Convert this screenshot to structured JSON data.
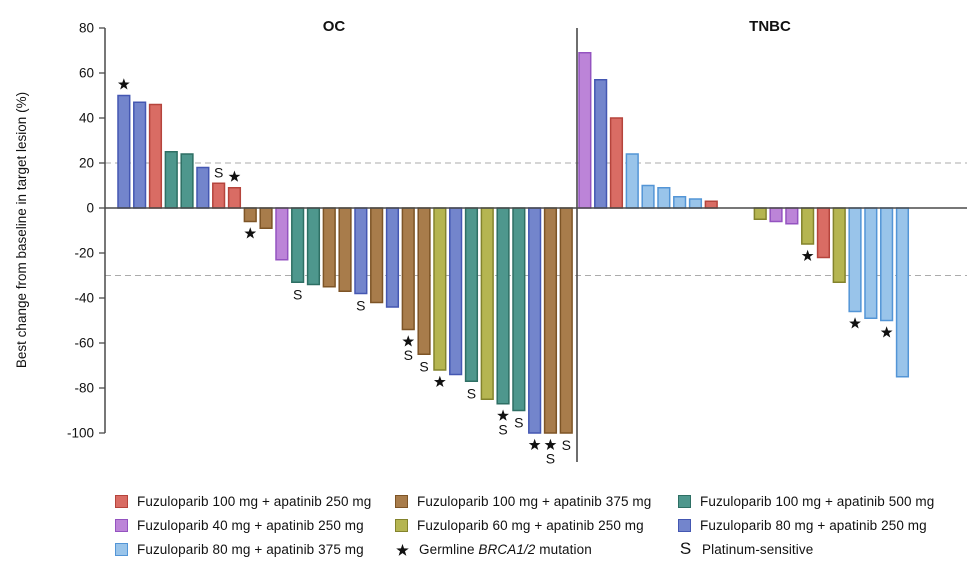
{
  "palette": {
    "red": {
      "fill": "#D96C64",
      "stroke": "#B5443C"
    },
    "brown": {
      "fill": "#A87C4B",
      "stroke": "#7D5426"
    },
    "teal": {
      "fill": "#4E978D",
      "stroke": "#2E6F64"
    },
    "purple": {
      "fill": "#BC84D8",
      "stroke": "#9453C0"
    },
    "yellow": {
      "fill": "#B5B551",
      "stroke": "#83832C"
    },
    "indigo": {
      "fill": "#7385CC",
      "stroke": "#4457B2"
    },
    "skyblue": {
      "fill": "#99C4EA",
      "stroke": "#5395D6"
    }
  },
  "chart_data": {
    "type": "bar",
    "subtype": "waterfall",
    "ylabel": "Best change from baseline in target lesion (%)",
    "ylim": [
      -100,
      80
    ],
    "yticks": [
      80,
      60,
      40,
      20,
      0,
      -20,
      -40,
      -60,
      -80,
      -100
    ],
    "reference_lines": [
      20,
      -30
    ],
    "grid": false,
    "annotation_key": {
      "*": "Germline BRCA1/2 mutation",
      "S": "Platinum-sensitive"
    },
    "panels": [
      {
        "label": "OC",
        "bars": [
          {
            "v": 50,
            "c": "indigo",
            "f": "*"
          },
          {
            "v": 47,
            "c": "indigo",
            "f": ""
          },
          {
            "v": 46,
            "c": "red",
            "f": ""
          },
          {
            "v": 25,
            "c": "teal",
            "f": ""
          },
          {
            "v": 24,
            "c": "teal",
            "f": ""
          },
          {
            "v": 18,
            "c": "indigo",
            "f": ""
          },
          {
            "v": 11,
            "c": "red",
            "f": "S"
          },
          {
            "v": 9,
            "c": "red",
            "f": "*"
          },
          {
            "v": -6,
            "c": "brown",
            "f": "*"
          },
          {
            "v": -9,
            "c": "brown",
            "f": ""
          },
          {
            "v": -23,
            "c": "purple",
            "f": ""
          },
          {
            "v": -33,
            "c": "teal",
            "f": "S"
          },
          {
            "v": -34,
            "c": "teal",
            "f": ""
          },
          {
            "v": -35,
            "c": "brown",
            "f": ""
          },
          {
            "v": -37,
            "c": "brown",
            "f": ""
          },
          {
            "v": -38,
            "c": "indigo",
            "f": "S"
          },
          {
            "v": -42,
            "c": "brown",
            "f": ""
          },
          {
            "v": -44,
            "c": "indigo",
            "f": ""
          },
          {
            "v": -54,
            "c": "brown",
            "f": "*S"
          },
          {
            "v": -65,
            "c": "brown",
            "f": "S"
          },
          {
            "v": -72,
            "c": "yellow",
            "f": "*"
          },
          {
            "v": -74,
            "c": "indigo",
            "f": ""
          },
          {
            "v": -77,
            "c": "teal",
            "f": "S"
          },
          {
            "v": -85,
            "c": "yellow",
            "f": ""
          },
          {
            "v": -87,
            "c": "teal",
            "f": "*S"
          },
          {
            "v": -90,
            "c": "teal",
            "f": "S"
          },
          {
            "v": -100,
            "c": "indigo",
            "f": "*"
          },
          {
            "v": -100,
            "c": "brown",
            "f": "*S"
          },
          {
            "v": -100,
            "c": "brown",
            "f": "S"
          }
        ]
      },
      {
        "label": "TNBC",
        "gap_after_index": 8,
        "gap_slots": 2.1,
        "bars": [
          {
            "v": 69,
            "c": "purple",
            "f": ""
          },
          {
            "v": 57,
            "c": "indigo",
            "f": ""
          },
          {
            "v": 40,
            "c": "red",
            "f": ""
          },
          {
            "v": 24,
            "c": "skyblue",
            "f": ""
          },
          {
            "v": 10,
            "c": "skyblue",
            "f": ""
          },
          {
            "v": 9,
            "c": "skyblue",
            "f": ""
          },
          {
            "v": 5,
            "c": "skyblue",
            "f": ""
          },
          {
            "v": 4,
            "c": "skyblue",
            "f": ""
          },
          {
            "v": 3,
            "c": "red",
            "f": ""
          },
          {
            "v": -5,
            "c": "yellow",
            "f": ""
          },
          {
            "v": -6,
            "c": "purple",
            "f": ""
          },
          {
            "v": -7,
            "c": "purple",
            "f": ""
          },
          {
            "v": -16,
            "c": "yellow",
            "f": "*"
          },
          {
            "v": -22,
            "c": "red",
            "f": ""
          },
          {
            "v": -33,
            "c": "yellow",
            "f": ""
          },
          {
            "v": -46,
            "c": "skyblue",
            "f": "*"
          },
          {
            "v": -49,
            "c": "skyblue",
            "f": ""
          },
          {
            "v": -50,
            "c": "skyblue",
            "f": "*"
          },
          {
            "v": -75,
            "c": "skyblue",
            "f": ""
          }
        ]
      }
    ]
  },
  "legend": {
    "items": [
      {
        "type": "swatch",
        "color": "red",
        "col": 0,
        "row": 0,
        "parts": [
          {
            "t": "Fuzuloparib 100 mg + apatinib 250 mg"
          }
        ]
      },
      {
        "type": "swatch",
        "color": "purple",
        "col": 0,
        "row": 1,
        "parts": [
          {
            "t": "Fuzuloparib 40 mg + apatinib 250 mg"
          }
        ]
      },
      {
        "type": "swatch",
        "color": "skyblue",
        "col": 0,
        "row": 2,
        "parts": [
          {
            "t": "Fuzuloparib 80 mg + apatinib 375 mg"
          }
        ]
      },
      {
        "type": "swatch",
        "color": "brown",
        "col": 1,
        "row": 0,
        "parts": [
          {
            "t": "Fuzuloparib 100 mg + apatinib 375 mg"
          }
        ]
      },
      {
        "type": "swatch",
        "color": "yellow",
        "col": 1,
        "row": 1,
        "parts": [
          {
            "t": "Fuzuloparib 60 mg + apatinib 250 mg"
          }
        ]
      },
      {
        "type": "star",
        "color": "",
        "col": 1,
        "row": 2,
        "parts": [
          {
            "t": "Germline "
          },
          {
            "t": "BRCA1/2",
            "i": true
          },
          {
            "t": " mutation"
          }
        ]
      },
      {
        "type": "swatch",
        "color": "teal",
        "col": 2,
        "row": 0,
        "parts": [
          {
            "t": "Fuzuloparib 100 mg + apatinib 500 mg"
          }
        ]
      },
      {
        "type": "swatch",
        "color": "indigo",
        "col": 2,
        "row": 1,
        "parts": [
          {
            "t": "Fuzuloparib 80 mg + apatinib 250 mg"
          }
        ]
      },
      {
        "type": "s",
        "color": "",
        "col": 2,
        "row": 2,
        "parts": [
          {
            "t": "Platinum-sensitive"
          }
        ]
      }
    ]
  }
}
